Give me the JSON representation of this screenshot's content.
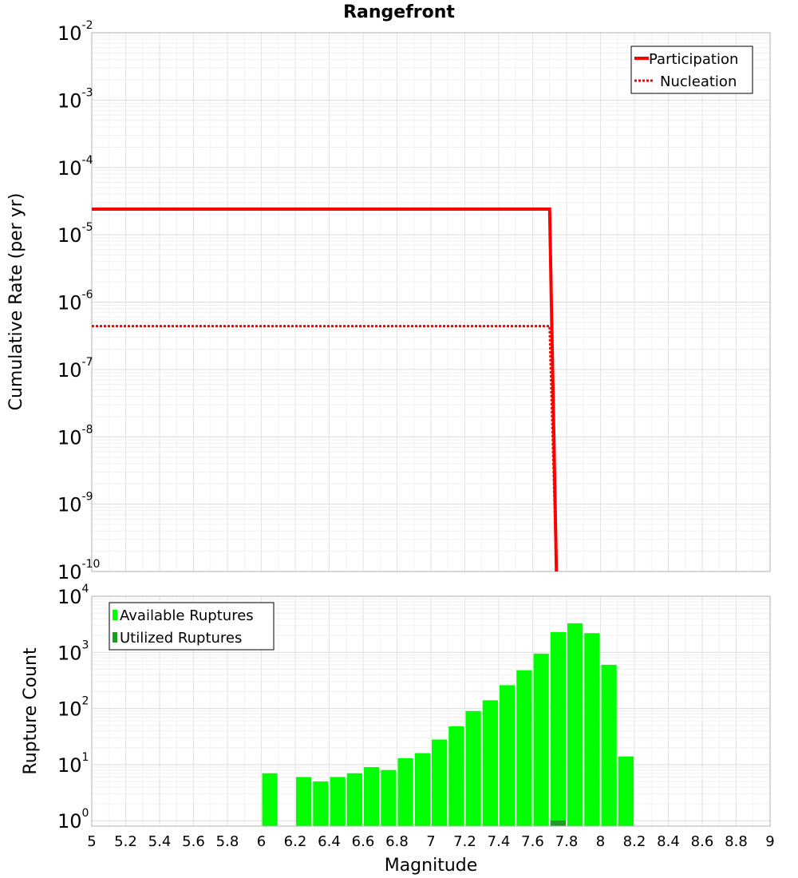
{
  "colors": {
    "participation": "#ff0000",
    "nucleation": "#ff0000",
    "available": "#00ff00",
    "utilized": "#1e9e1e",
    "grid": "#e6e6e6",
    "axes": "#b0b0b0"
  },
  "chart_data": [
    {
      "type": "line",
      "title": "Rangefront",
      "xlabel": "",
      "ylabel": "Cumulative Rate (per yr)",
      "xlim": [
        5,
        9
      ],
      "yscale": "log",
      "ylim": [
        1e-10,
        0.01
      ],
      "y_tick_exponents": [
        "-10",
        "-9",
        "-8",
        "-7",
        "-6",
        "-5",
        "-4",
        "-3",
        "-2"
      ],
      "grid": true,
      "legend_position": "top-right",
      "series": [
        {
          "name": "Participation",
          "style": "solid",
          "points": [
            [
              5.0,
              2.4e-05
            ],
            [
              7.7,
              2.4e-05
            ],
            [
              7.74,
              1e-10
            ]
          ]
        },
        {
          "name": "Nucleation",
          "style": "dotted",
          "points": [
            [
              5.0,
              4.4e-07
            ],
            [
              7.7,
              4.4e-07
            ],
            [
              7.74,
              1e-10
            ]
          ]
        }
      ]
    },
    {
      "type": "bar",
      "xlabel": "Magnitude",
      "ylabel": "Rupture Count",
      "xlim": [
        5,
        9
      ],
      "yscale": "log",
      "ylim": [
        0.8,
        10000
      ],
      "y_tick_exponents": [
        "0",
        "1",
        "2",
        "3",
        "4"
      ],
      "x_tick_labels": [
        "5",
        "5.2",
        "5.4",
        "5.6",
        "5.8",
        "6",
        "6.2",
        "6.4",
        "6.6",
        "6.8",
        "7",
        "7.2",
        "7.4",
        "7.6",
        "7.8",
        "8",
        "8.2",
        "8.4",
        "8.6",
        "8.8",
        "9"
      ],
      "grid": true,
      "legend_position": "top-left",
      "bin_width": 0.1,
      "series": [
        {
          "name": "Available Ruptures",
          "bins": [
            {
              "x": 6.05,
              "value": 7
            },
            {
              "x": 6.25,
              "value": 6
            },
            {
              "x": 6.35,
              "value": 5
            },
            {
              "x": 6.45,
              "value": 6
            },
            {
              "x": 6.55,
              "value": 7
            },
            {
              "x": 6.65,
              "value": 9
            },
            {
              "x": 6.75,
              "value": 8
            },
            {
              "x": 6.85,
              "value": 13
            },
            {
              "x": 6.95,
              "value": 16
            },
            {
              "x": 7.05,
              "value": 28
            },
            {
              "x": 7.15,
              "value": 48
            },
            {
              "x": 7.25,
              "value": 90
            },
            {
              "x": 7.35,
              "value": 140
            },
            {
              "x": 7.45,
              "value": 260
            },
            {
              "x": 7.55,
              "value": 480
            },
            {
              "x": 7.65,
              "value": 950
            },
            {
              "x": 7.75,
              "value": 2300
            },
            {
              "x": 7.85,
              "value": 3300
            },
            {
              "x": 7.95,
              "value": 2200
            },
            {
              "x": 8.05,
              "value": 600
            },
            {
              "x": 8.15,
              "value": 14
            }
          ]
        },
        {
          "name": "Utilized Ruptures",
          "bins": [
            {
              "x": 7.75,
              "value": 1
            }
          ]
        }
      ]
    }
  ]
}
